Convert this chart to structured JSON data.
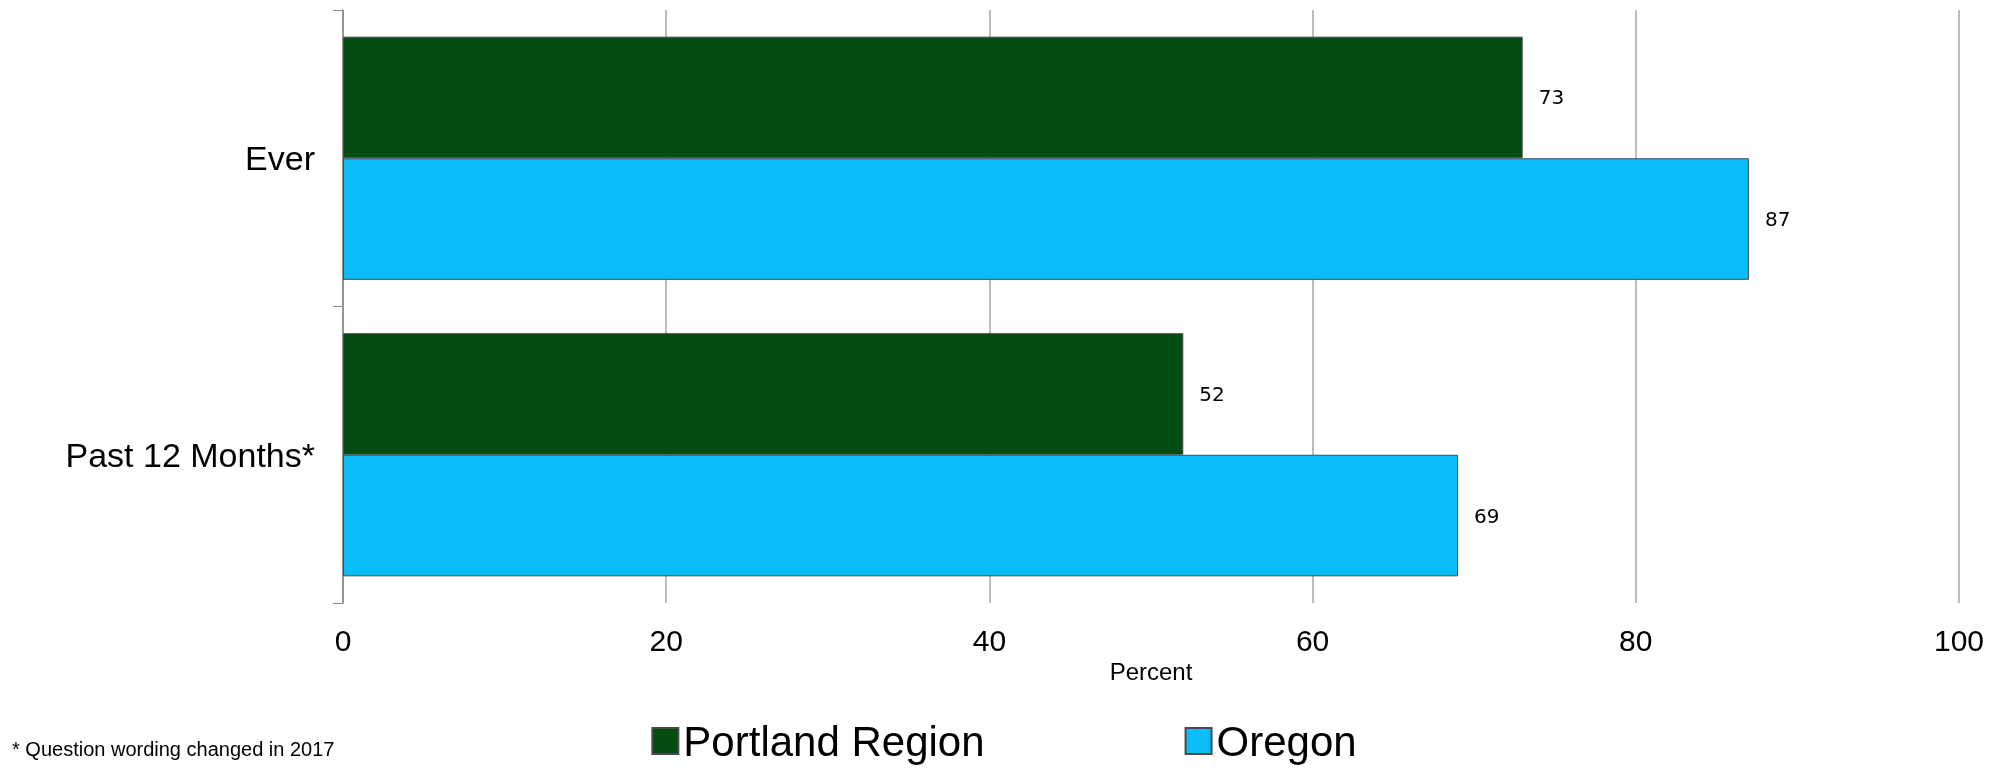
{
  "chart_data": {
    "type": "bar",
    "orientation": "horizontal",
    "xlabel": "Percent",
    "categories": [
      "Ever",
      "Past 12 Months*"
    ],
    "series": [
      {
        "name": "Portland Region",
        "color": "#044d12",
        "values": [
          73,
          52
        ]
      },
      {
        "name": "Oregon",
        "color": "#0abdf8",
        "values": [
          87,
          69
        ]
      }
    ],
    "xlim": [
      0,
      100
    ],
    "xticks": [
      0,
      20,
      40,
      60,
      80,
      100
    ],
    "grid": "x",
    "legend": "bottom",
    "data_labels": true,
    "annotations": [
      "* Question wording changed in 2017"
    ]
  }
}
